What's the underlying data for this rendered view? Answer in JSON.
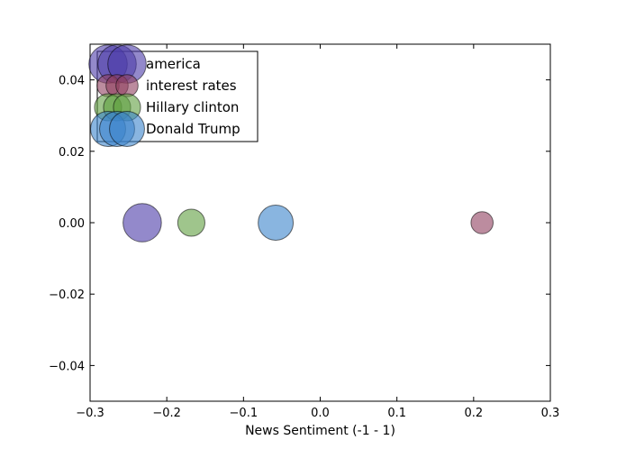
{
  "chart_data": {
    "type": "scatter",
    "title": "",
    "xlabel": "News Sentiment (-1  -  1)",
    "ylabel": "",
    "xlim": [
      -0.3,
      0.3
    ],
    "ylim": [
      -0.05,
      0.05
    ],
    "xticks": [
      -0.3,
      -0.2,
      -0.1,
      0.0,
      0.1,
      0.2,
      0.3
    ],
    "xtick_labels": [
      "−0.3",
      "−0.2",
      "−0.1",
      "0.0",
      "0.1",
      "0.2",
      "0.3"
    ],
    "yticks": [
      -0.04,
      -0.02,
      0.0,
      0.02,
      0.04
    ],
    "ytick_labels": [
      "−0.04",
      "−0.02",
      "0.00",
      "0.02",
      "0.04"
    ],
    "grid": false,
    "legend_position": "top-left",
    "series": [
      {
        "name": "america",
        "x": -0.232,
        "y": 0.0,
        "size": 3,
        "color": "#4b3ba8"
      },
      {
        "name": "interest rates",
        "x": 0.211,
        "y": 0.0,
        "size": 1,
        "color": "#8f3f5f"
      },
      {
        "name": "Hillary clinton",
        "x": -0.168,
        "y": 0.0,
        "size": 1.5,
        "color": "#5f9f3f"
      },
      {
        "name": "Donald Trump",
        "x": -0.058,
        "y": 0.0,
        "size": 2.5,
        "color": "#3a84cc"
      }
    ]
  }
}
